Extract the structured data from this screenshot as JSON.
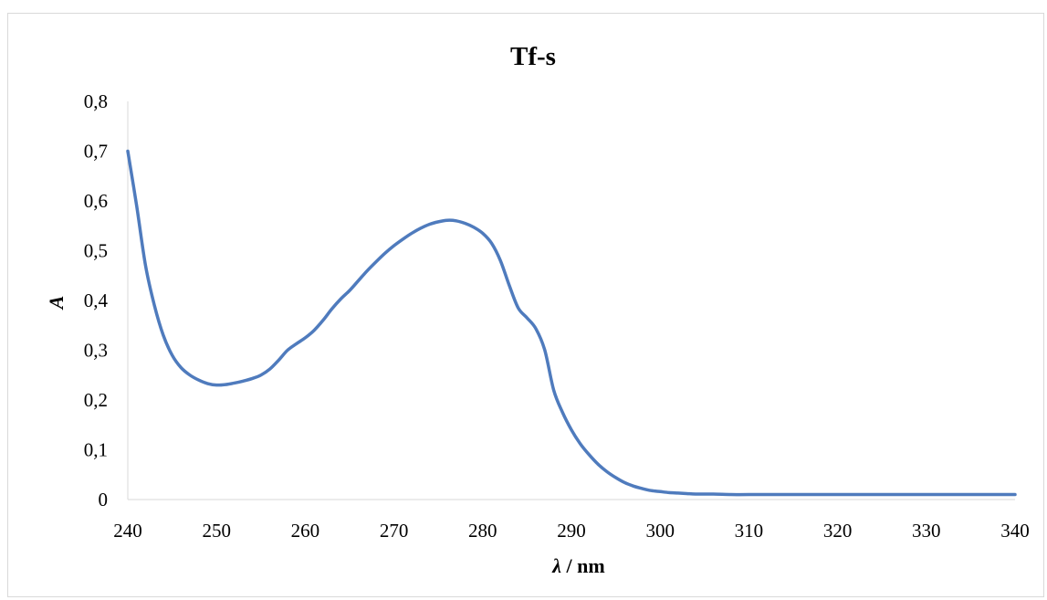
{
  "chart_data": {
    "type": "line",
    "title": "Tf-s",
    "xlabel_symbol": "λ",
    "xlabel_unit": " / nm",
    "ylabel": "A",
    "xlim": [
      240,
      340
    ],
    "ylim": [
      0,
      0.8
    ],
    "x_ticks": [
      240,
      250,
      260,
      270,
      280,
      290,
      300,
      310,
      320,
      330,
      340
    ],
    "x_tick_labels": [
      "240",
      "250",
      "260",
      "270",
      "280",
      "290",
      "300",
      "310",
      "320",
      "330",
      "340"
    ],
    "y_ticks": [
      0,
      0.1,
      0.2,
      0.3,
      0.4,
      0.5,
      0.6,
      0.7,
      0.8
    ],
    "y_tick_labels": [
      "0",
      "0,1",
      "0,2",
      "0,3",
      "0,4",
      "0,5",
      "0,6",
      "0,7",
      "0,8"
    ],
    "grid": false,
    "legend": "none",
    "line_color": "#4f7bbd",
    "series": [
      {
        "x": [
          240,
          241,
          242,
          243,
          244,
          245,
          246,
          247,
          248,
          249,
          250,
          251,
          252,
          253,
          254,
          255,
          256,
          257,
          258,
          259,
          260,
          261,
          262,
          263,
          264,
          265,
          266,
          267,
          268,
          269,
          270,
          271,
          272,
          273,
          274,
          275,
          276,
          277,
          278,
          279,
          280,
          281,
          282,
          283,
          284,
          285,
          286,
          287,
          288,
          289,
          290,
          291,
          292,
          293,
          294,
          295,
          296,
          297,
          298,
          299,
          300,
          301,
          302,
          303,
          304,
          306,
          308,
          310,
          315,
          320,
          325,
          330,
          335,
          340
        ],
        "y": [
          0.7,
          0.59,
          0.47,
          0.39,
          0.33,
          0.29,
          0.265,
          0.25,
          0.24,
          0.233,
          0.23,
          0.231,
          0.234,
          0.238,
          0.243,
          0.25,
          0.262,
          0.28,
          0.3,
          0.313,
          0.325,
          0.34,
          0.36,
          0.383,
          0.403,
          0.42,
          0.44,
          0.46,
          0.478,
          0.495,
          0.51,
          0.523,
          0.535,
          0.545,
          0.553,
          0.558,
          0.561,
          0.56,
          0.555,
          0.547,
          0.535,
          0.515,
          0.48,
          0.43,
          0.385,
          0.365,
          0.343,
          0.3,
          0.22,
          0.175,
          0.14,
          0.112,
          0.09,
          0.071,
          0.056,
          0.044,
          0.034,
          0.027,
          0.022,
          0.018,
          0.016,
          0.014,
          0.013,
          0.012,
          0.011,
          0.011,
          0.01,
          0.01,
          0.01,
          0.01,
          0.01,
          0.01,
          0.01,
          0.01
        ]
      }
    ]
  }
}
